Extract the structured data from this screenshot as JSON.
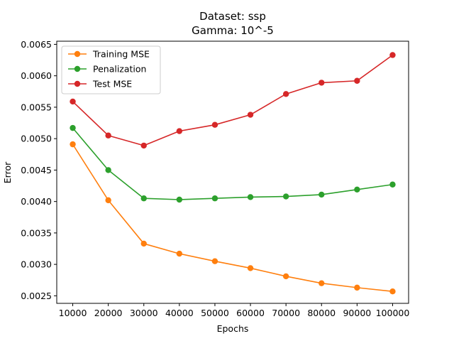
{
  "chart_data": {
    "type": "line",
    "title": "Dataset: ssp",
    "subtitle": "Gamma: 10^-5",
    "xlabel": "Epochs",
    "ylabel": "Error",
    "x": [
      10000,
      20000,
      30000,
      40000,
      50000,
      60000,
      70000,
      80000,
      90000,
      100000
    ],
    "x_tick_labels": [
      "10000",
      "20000",
      "30000",
      "40000",
      "50000",
      "60000",
      "70000",
      "80000",
      "90000",
      "100000"
    ],
    "xlim": [
      5500,
      104500
    ],
    "ylim": [
      0.00238,
      0.00655
    ],
    "y_ticks": [
      0.0025,
      0.003,
      0.0035,
      0.004,
      0.0045,
      0.005,
      0.0055,
      0.006,
      0.0065
    ],
    "y_tick_labels": [
      "0.0025",
      "0.0030",
      "0.0035",
      "0.0040",
      "0.0045",
      "0.0050",
      "0.0055",
      "0.0060",
      "0.0065"
    ],
    "grid": false,
    "legend_position": "upper-left",
    "series": [
      {
        "name": "Training MSE",
        "color": "#ff7f0e",
        "values": [
          0.00491,
          0.00402,
          0.00333,
          0.00317,
          0.00305,
          0.00294,
          0.00281,
          0.0027,
          0.00263,
          0.00257
        ]
      },
      {
        "name": "Penalization",
        "color": "#2ca02c",
        "values": [
          0.00517,
          0.0045,
          0.00405,
          0.00403,
          0.00405,
          0.00407,
          0.00408,
          0.00411,
          0.00419,
          0.00427
        ]
      },
      {
        "name": "Test MSE",
        "color": "#d62728",
        "values": [
          0.00559,
          0.00505,
          0.00489,
          0.00512,
          0.00522,
          0.00538,
          0.00571,
          0.00589,
          0.00592,
          0.00633
        ]
      }
    ]
  }
}
